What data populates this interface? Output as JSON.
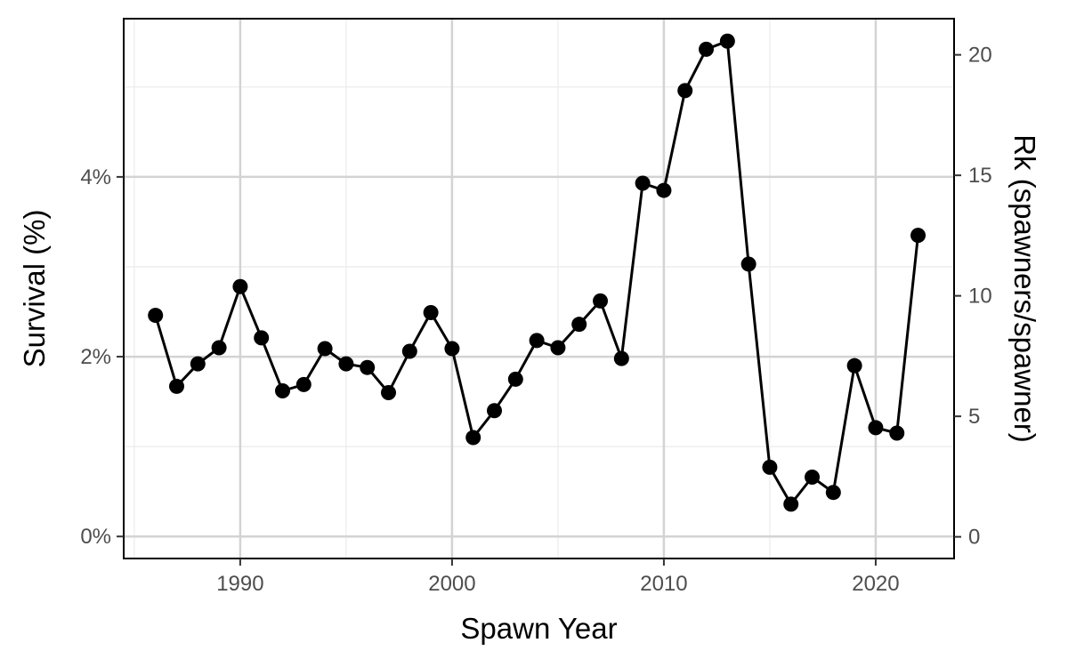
{
  "chart_data": {
    "type": "line",
    "xlabel": "Spawn Year",
    "ylabel": "Survival (%)",
    "y2label": "Rk (spawners/spawner)",
    "xlim": [
      1984.5,
      2023.7
    ],
    "ylim": [
      -0.245,
      5.76
    ],
    "y2lim": [
      -0.9,
      21.5
    ],
    "x_ticks": [
      1990,
      2000,
      2010,
      2020
    ],
    "x_tick_labels": [
      "1990",
      "2000",
      "2010",
      "2020"
    ],
    "y_ticks": [
      0,
      2,
      4
    ],
    "y_tick_labels": [
      "0%",
      "2%",
      "4%"
    ],
    "y2_ticks": [
      0,
      5,
      10,
      15,
      20
    ],
    "y2_tick_labels": [
      "0",
      "5",
      "10",
      "15",
      "20"
    ],
    "grid": true,
    "legend": "none",
    "colors": {
      "line": "#000000",
      "grid_major": "#d3d3d3",
      "grid_minor": "#ebebeb",
      "panel_border": "#000000",
      "tick_text": "#4d4d4d"
    },
    "series": [
      {
        "x": [
          1986,
          1987,
          1988,
          1989,
          1990,
          1991,
          1992,
          1993,
          1994,
          1995,
          1996,
          1997,
          1998,
          1999,
          2000,
          2001,
          2002,
          2003,
          2004,
          2005,
          2006,
          2007,
          2008,
          2009,
          2010,
          2011,
          2012,
          2013,
          2014,
          2015,
          2016,
          2017,
          2018,
          2019,
          2020,
          2021,
          2022
        ],
        "y": [
          2.46,
          1.67,
          1.92,
          2.1,
          2.78,
          2.21,
          1.62,
          1.69,
          2.09,
          1.92,
          1.88,
          1.6,
          2.06,
          2.49,
          2.09,
          1.1,
          1.4,
          1.75,
          2.18,
          2.1,
          2.36,
          2.62,
          1.98,
          3.93,
          3.85,
          4.96,
          5.42,
          5.51,
          3.03,
          0.77,
          0.36,
          0.66,
          0.49,
          1.9,
          1.21,
          1.15,
          3.35
        ]
      }
    ]
  }
}
